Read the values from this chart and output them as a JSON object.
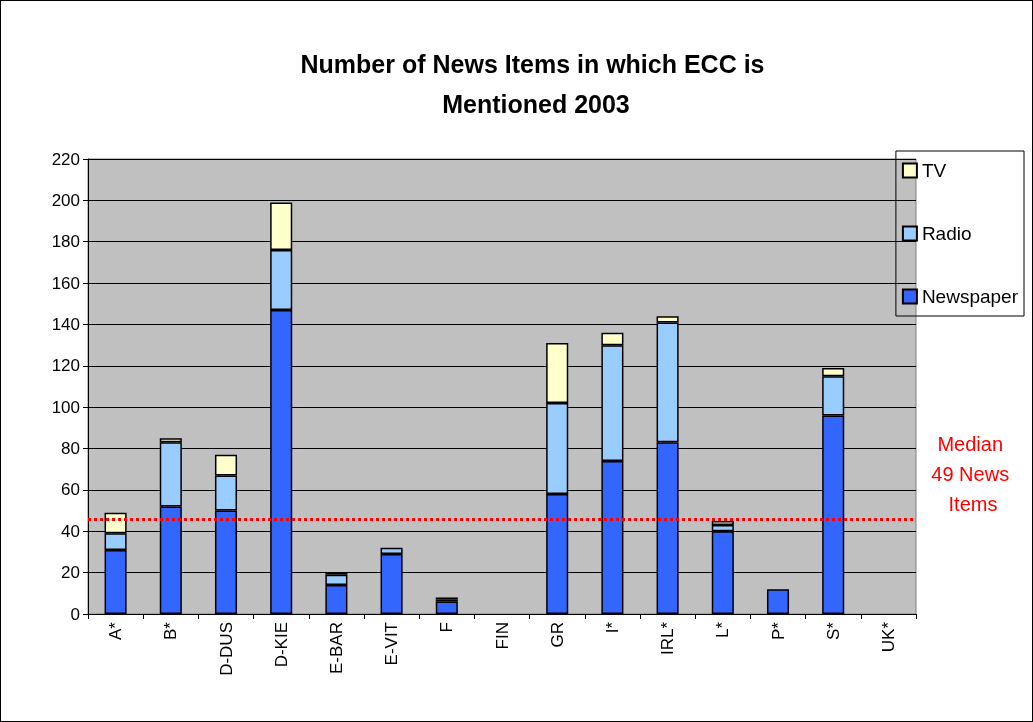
{
  "chart_data": {
    "type": "bar",
    "title": "Number of News Items in which ECC is Mentioned 2003",
    "categories": [
      "A*",
      "B*",
      "D-DUS",
      "D-KIE",
      "E-BAR",
      "E-VIT",
      "F",
      "FIN",
      "GR",
      "I*",
      "IRL*",
      "L*",
      "P*",
      "S*",
      "UK*"
    ],
    "stacked": true,
    "series": [
      {
        "name": "Newspaper",
        "color": "#3366ff",
        "values": [
          31,
          52,
          50,
          147,
          14,
          29,
          6,
          0,
          58,
          74,
          83,
          40,
          12,
          96,
          0
        ]
      },
      {
        "name": "Radio",
        "color": "#99ccff",
        "values": [
          8,
          31,
          17,
          29,
          5,
          3,
          1,
          0,
          44,
          56,
          58,
          3,
          0,
          19,
          0
        ]
      },
      {
        "name": "TV",
        "color": "#ffffcc",
        "values": [
          10,
          2,
          10,
          23,
          1,
          0,
          1,
          0,
          29,
          6,
          3,
          2,
          0,
          4,
          0
        ]
      }
    ],
    "ylim": [
      0,
      220
    ],
    "yticks": [
      0,
      20,
      40,
      60,
      80,
      100,
      120,
      140,
      160,
      180,
      200,
      220
    ],
    "grid": "y",
    "legend": "right",
    "ref_lines": [
      {
        "axis": "y",
        "value": 46,
        "label": "Median 49 News Items",
        "color": "#ff0000",
        "line_style": "dotted"
      }
    ]
  }
}
